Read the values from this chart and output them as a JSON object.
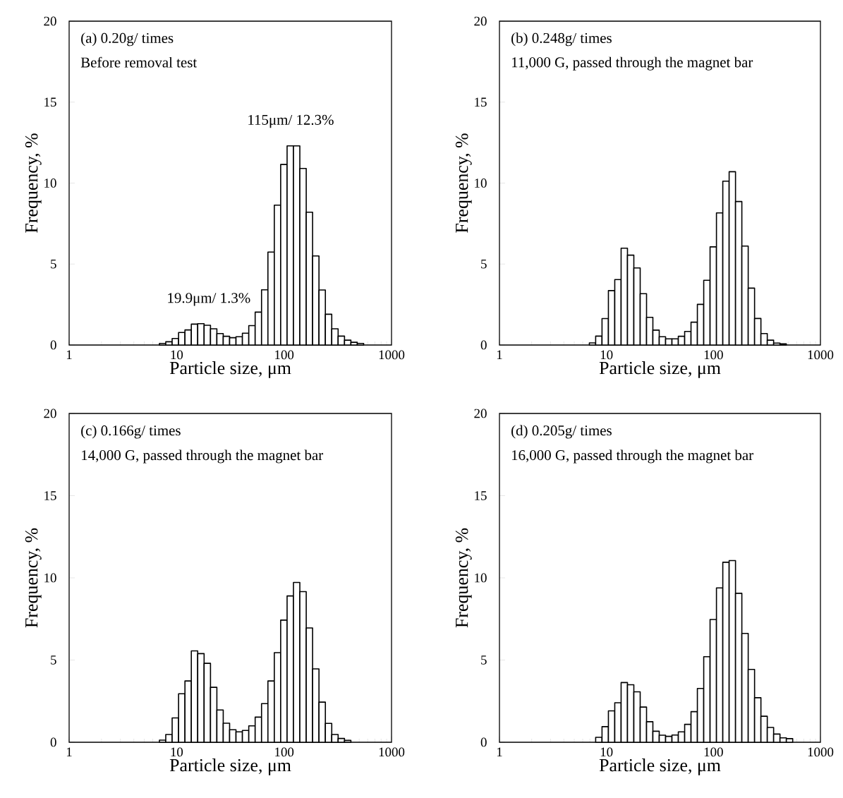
{
  "chart_data": [
    {
      "type": "histogram",
      "xlabel": "Particle size, μm",
      "ylabel": "Frequency, %",
      "log": "x",
      "xlim": [
        1,
        1000
      ],
      "xticks": [
        1,
        10,
        100,
        1000
      ],
      "ylim": [
        0,
        20
      ],
      "yticks": [
        0,
        5,
        10,
        15,
        20
      ],
      "annotations": [
        "(a) 0.20g/ times",
        "Before removal test",
        {
          "text": "115μm/ 12.3%",
          "x": 115,
          "y": 12.3
        },
        {
          "text": "19.9μm/ 1.3%",
          "x": 19.9,
          "y": 1.3
        }
      ],
      "bins": [
        6.92,
        7.93,
        9.09,
        10.43,
        11.96,
        13.71,
        15.72,
        18.03,
        20.67,
        23.7,
        27.16,
        31.14,
        35.71,
        40.95,
        46.95,
        53.83,
        61.72,
        70.76,
        81.13,
        93.0,
        106.7,
        122.3,
        140.2,
        160.8,
        184.3,
        211.3,
        242.3,
        277.8,
        318.5,
        365.2,
        418.8,
        480.1,
        550.5
      ],
      "values": [
        0.1,
        0.2,
        0.4,
        0.77,
        0.93,
        1.29,
        1.32,
        1.22,
        1.0,
        0.71,
        0.54,
        0.45,
        0.51,
        0.73,
        1.2,
        2.03,
        3.41,
        5.74,
        8.64,
        11.15,
        12.3,
        12.3,
        10.9,
        8.2,
        5.5,
        3.4,
        1.9,
        1.0,
        0.55,
        0.3,
        0.17,
        0.1
      ]
    },
    {
      "type": "histogram",
      "xlabel": "Particle size, μm",
      "ylabel": "Frequency, %",
      "log": "x",
      "xlim": [
        1,
        1000
      ],
      "xticks": [
        1,
        10,
        100,
        1000
      ],
      "ylim": [
        0,
        20
      ],
      "yticks": [
        0,
        5,
        10,
        15,
        20
      ],
      "annotations": [
        "(b) 0.248g/ times",
        "11,000 G, passed through the magnet bar"
      ],
      "bins": [
        6.92,
        7.93,
        9.09,
        10.43,
        11.96,
        13.71,
        15.72,
        18.03,
        20.67,
        23.7,
        27.16,
        31.14,
        35.71,
        40.95,
        46.95,
        53.83,
        61.72,
        70.76,
        81.13,
        93.0,
        106.7,
        122.3,
        140.2,
        160.8,
        184.3,
        211.3,
        242.3,
        277.8,
        318.5,
        365.2,
        418.8,
        480.1
      ],
      "values": [
        0.13,
        0.55,
        1.63,
        3.36,
        4.04,
        5.98,
        5.55,
        4.76,
        3.17,
        1.71,
        0.92,
        0.51,
        0.38,
        0.38,
        0.54,
        0.84,
        1.41,
        2.51,
        4.0,
        6.06,
        8.16,
        10.12,
        10.7,
        8.86,
        6.11,
        3.51,
        1.64,
        0.71,
        0.3,
        0.12,
        0.07
      ]
    },
    {
      "type": "histogram",
      "xlabel": "Particle size, μm",
      "ylabel": "Frequency, %",
      "log": "x",
      "xlim": [
        1,
        1000
      ],
      "xticks": [
        1,
        10,
        100,
        1000
      ],
      "ylim": [
        0,
        20
      ],
      "yticks": [
        0,
        5,
        10,
        15,
        20
      ],
      "annotations": [
        "(c) 0.166g/ times",
        "14,000 G, passed through the magnet bar"
      ],
      "bins": [
        6.92,
        7.93,
        9.09,
        10.43,
        11.96,
        13.71,
        15.72,
        18.03,
        20.67,
        23.7,
        27.16,
        31.14,
        35.71,
        40.95,
        46.95,
        53.83,
        61.72,
        70.76,
        81.13,
        93.0,
        106.7,
        122.3,
        140.2,
        160.8,
        184.3,
        211.3,
        242.3,
        277.8,
        318.5,
        365.2,
        418.8
      ],
      "values": [
        0.13,
        0.47,
        1.48,
        2.95,
        3.73,
        5.56,
        5.39,
        4.8,
        3.34,
        1.96,
        1.16,
        0.76,
        0.63,
        0.72,
        1.0,
        1.53,
        2.35,
        3.73,
        5.45,
        7.43,
        8.9,
        9.72,
        9.16,
        6.95,
        4.46,
        2.44,
        1.15,
        0.47,
        0.23,
        0.11
      ]
    },
    {
      "type": "histogram",
      "xlabel": "Particle size, μm",
      "ylabel": "Frequency, %",
      "log": "x",
      "xlim": [
        1,
        1000
      ],
      "xticks": [
        1,
        10,
        100,
        1000
      ],
      "ylim": [
        0,
        20
      ],
      "yticks": [
        0,
        5,
        10,
        15,
        20
      ],
      "annotations": [
        "(d) 0.205g/ times",
        "16,000 G, passed through the magnet bar"
      ],
      "bins": [
        7.93,
        9.09,
        10.43,
        11.96,
        13.71,
        15.72,
        18.03,
        20.67,
        23.7,
        27.16,
        31.14,
        35.71,
        40.95,
        46.95,
        53.83,
        61.72,
        70.76,
        81.13,
        93.0,
        106.7,
        122.3,
        140.2,
        160.8,
        184.3,
        211.3,
        242.3,
        277.8,
        318.5,
        365.2,
        418.8,
        480.1,
        550.5
      ],
      "values": [
        0.3,
        0.95,
        1.91,
        2.4,
        3.63,
        3.5,
        3.07,
        2.14,
        1.25,
        0.67,
        0.43,
        0.36,
        0.44,
        0.63,
        1.09,
        1.86,
        3.27,
        5.2,
        7.47,
        9.39,
        10.95,
        11.05,
        9.06,
        6.62,
        4.43,
        2.71,
        1.58,
        0.9,
        0.5,
        0.27,
        0.22
      ]
    }
  ]
}
